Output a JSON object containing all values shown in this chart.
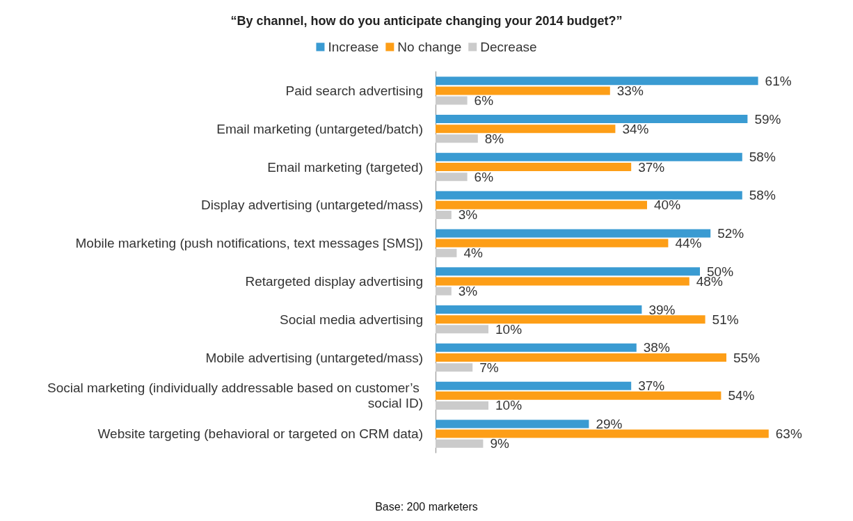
{
  "chart_data": {
    "type": "bar",
    "orientation": "horizontal",
    "title": "“By channel, how do you anticipate changing your 2014 budget?”",
    "categories": [
      "Paid search advertising",
      "Email marketing (untargeted/batch)",
      "Email marketing (targeted)",
      "Display advertising (untargeted/mass)",
      "Mobile marketing (push notifications, text messages [SMS])",
      "Retargeted display advertising",
      "Social media advertising",
      "Mobile advertising (untargeted/mass)",
      "Social marketing (individually addressable based on customer’s social ID)",
      "Website targeting (behavioral or targeted on CRM data)"
    ],
    "series": [
      {
        "name": "Increase",
        "color": "#3a9bd2",
        "values": [
          61,
          59,
          58,
          58,
          52,
          50,
          39,
          38,
          37,
          29
        ],
        "value_labels": [
          "61%",
          "59%",
          "58%",
          "58%",
          "52%",
          "50%",
          "39%",
          "38%",
          "37%",
          "29%"
        ]
      },
      {
        "name": "No change",
        "color": "#fd9e17",
        "values": [
          33,
          34,
          37,
          40,
          44,
          48,
          51,
          55,
          54,
          63
        ],
        "value_labels": [
          "33%",
          "34%",
          "37%",
          "40%",
          "44%",
          "48%",
          "51%",
          "55%",
          "54%",
          "63%"
        ]
      },
      {
        "name": "Decrease",
        "color": "#cbcbcb",
        "values": [
          6,
          8,
          6,
          3,
          4,
          3,
          10,
          7,
          10,
          9
        ],
        "value_labels": [
          "6%",
          "8%",
          "6%",
          "3%",
          "4%",
          "3%",
          "10%",
          "7%",
          "10%",
          "9%"
        ]
      }
    ],
    "legend": "top",
    "annotations": [
      "Base: 200 marketers"
    ]
  }
}
